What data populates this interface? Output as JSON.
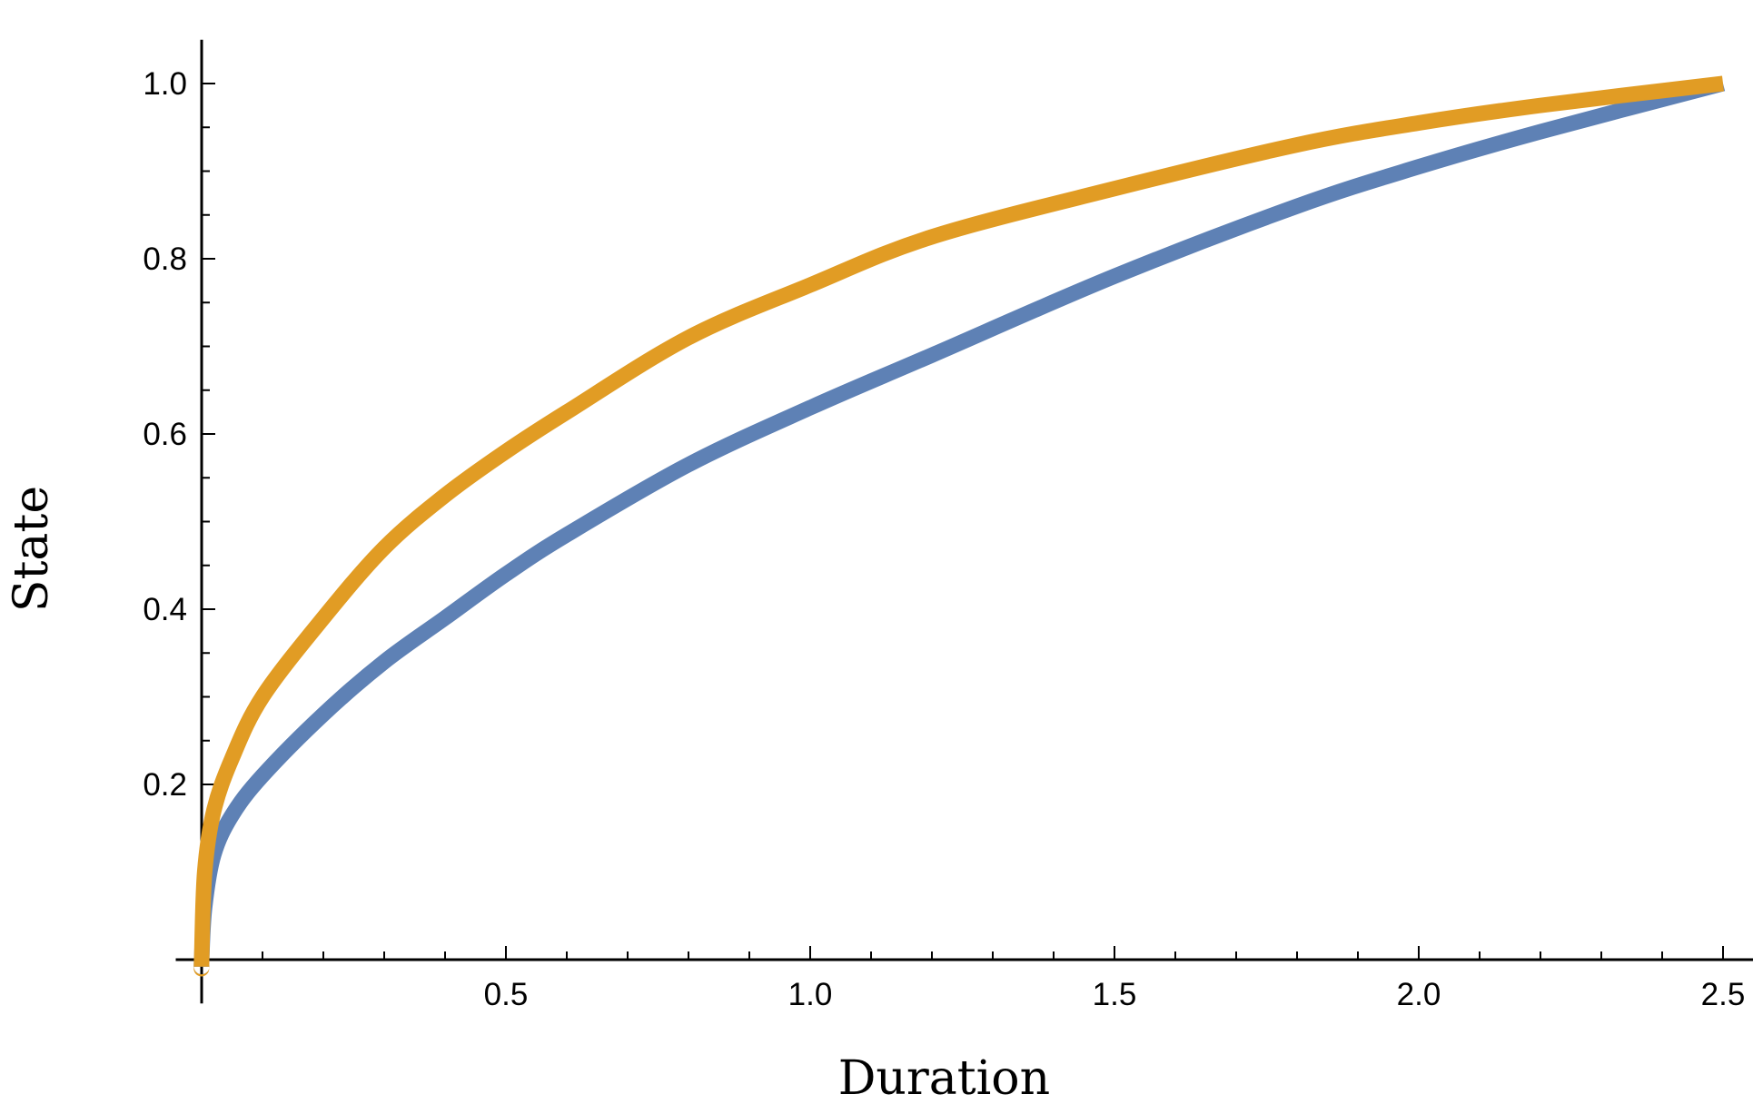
{
  "chart_data": {
    "type": "line",
    "title": "",
    "xlabel": "Duration",
    "ylabel": "State",
    "xlim": [
      -0.05,
      2.55
    ],
    "ylim": [
      -0.05,
      1.05
    ],
    "x_ticks": [
      "0.5",
      "1.0",
      "1.5",
      "2.0",
      "2.5"
    ],
    "y_ticks": [
      "0.2",
      "0.4",
      "0.6",
      "0.8",
      "1.0"
    ],
    "grid": false,
    "legend": "none",
    "series": [
      {
        "color": "#5e81b5",
        "x": [
          0.0,
          0.005,
          0.02,
          0.05,
          0.1,
          0.2,
          0.3,
          0.4,
          0.5,
          0.6,
          0.8,
          1.0,
          1.2,
          1.5,
          1.8,
          2.0,
          2.2,
          2.5
        ],
        "y": [
          0.0,
          0.06,
          0.12,
          0.165,
          0.21,
          0.28,
          0.34,
          0.39,
          0.44,
          0.485,
          0.565,
          0.63,
          0.69,
          0.78,
          0.86,
          0.905,
          0.945,
          1.0
        ]
      },
      {
        "color": "#e19c24",
        "x": [
          0.0,
          0.005,
          0.02,
          0.05,
          0.1,
          0.2,
          0.3,
          0.4,
          0.5,
          0.6,
          0.8,
          1.0,
          1.2,
          1.5,
          1.8,
          2.0,
          2.2,
          2.5
        ],
        "y": [
          0.0,
          0.1,
          0.17,
          0.23,
          0.3,
          0.39,
          0.47,
          0.53,
          0.58,
          0.625,
          0.71,
          0.77,
          0.825,
          0.88,
          0.93,
          0.955,
          0.975,
          1.0
        ]
      }
    ]
  }
}
